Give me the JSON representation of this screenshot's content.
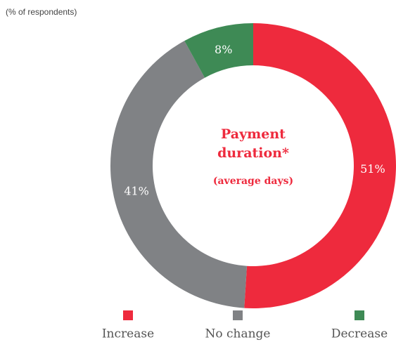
{
  "chart_data": {
    "type": "donut",
    "note": "(% of respondents)",
    "title": [
      "Payment",
      "duration*"
    ],
    "subtitle": "(average days)",
    "categories": [
      "Increase",
      "No change",
      "Decrease"
    ],
    "values": [
      51,
      41,
      8
    ],
    "value_labels": [
      "51%",
      "41%",
      "8%"
    ],
    "colors": [
      "#ee2a3d",
      "#808285",
      "#3e8a55"
    ]
  }
}
